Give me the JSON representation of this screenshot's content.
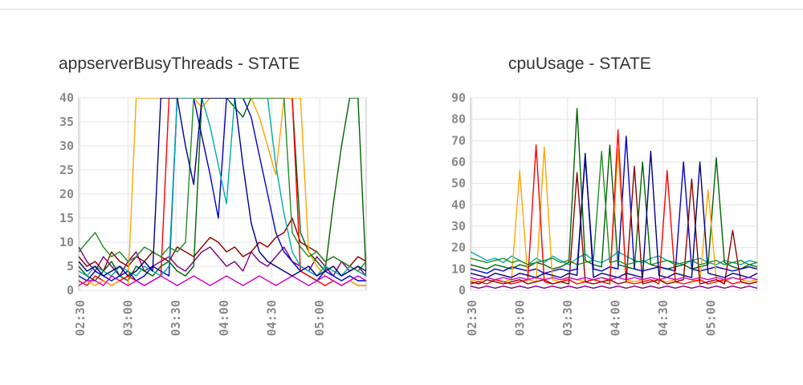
{
  "chart_data": [
    {
      "type": "line",
      "title": "appserverBusyThreads - STATE",
      "xlabel": "",
      "ylabel": "",
      "ylim": [
        0,
        40
      ],
      "yticks": [
        "0",
        "5",
        "10",
        "15",
        "20",
        "25",
        "30",
        "35",
        "40"
      ],
      "xticks": [
        "02:30",
        "03:00",
        "03:30",
        "04:00",
        "04:30",
        "05:00"
      ],
      "grid": true,
      "legend": "none",
      "series_colors": [
        "#800080",
        "#006400",
        "#0000cc",
        "#8b0000",
        "#ff0000",
        "#ffa500",
        "#00aaaa",
        "#228b22",
        "#cc00cc",
        "#000080"
      ],
      "series": [
        {
          "color": "#800080",
          "values": [
            9,
            6,
            4,
            7,
            5,
            3,
            6,
            8,
            4,
            5,
            6,
            7,
            5,
            4,
            6,
            8,
            9,
            7,
            5,
            6,
            4,
            8,
            6,
            5,
            7,
            9,
            6,
            5,
            4,
            7,
            5,
            3,
            6,
            4,
            5,
            3
          ]
        },
        {
          "color": "#006400",
          "values": [
            5,
            3,
            2,
            4,
            6,
            3,
            2,
            5,
            4,
            3,
            5,
            6,
            4,
            3,
            5,
            40,
            40,
            40,
            40,
            38,
            36,
            40,
            40,
            40,
            40,
            40,
            40,
            12,
            8,
            6,
            4,
            18,
            30,
            40,
            40,
            3
          ]
        },
        {
          "color": "#0000cc",
          "values": [
            3,
            2,
            4,
            3,
            2,
            3,
            4,
            2,
            3,
            5,
            4,
            3,
            40,
            40,
            40,
            32,
            24,
            15,
            40,
            40,
            40,
            36,
            28,
            20,
            12,
            8,
            6,
            4,
            3,
            2,
            4,
            3,
            2,
            3,
            2,
            2
          ]
        },
        {
          "color": "#8b0000",
          "values": [
            7,
            5,
            6,
            4,
            8,
            6,
            5,
            7,
            6,
            8,
            7,
            6,
            9,
            8,
            7,
            9,
            11,
            10,
            8,
            9,
            7,
            8,
            10,
            9,
            11,
            12,
            15,
            10,
            9,
            8,
            6,
            7,
            6,
            5,
            7,
            6
          ]
        },
        {
          "color": "#ff0000",
          "values": [
            2,
            1,
            3,
            2,
            1,
            2,
            3,
            2,
            1,
            2,
            3,
            40,
            40,
            40,
            40,
            40,
            40,
            40,
            40,
            40,
            40,
            40,
            40,
            40,
            40,
            40,
            40,
            4,
            3,
            2,
            1,
            2,
            1,
            2,
            1,
            1
          ]
        },
        {
          "color": "#ffa500",
          "values": [
            1,
            2,
            1,
            2,
            1,
            2,
            1,
            40,
            40,
            40,
            40,
            40,
            40,
            40,
            40,
            38,
            40,
            40,
            40,
            40,
            40,
            40,
            36,
            30,
            24,
            40,
            40,
            40,
            8,
            5,
            3,
            2,
            1,
            2,
            1,
            1
          ]
        },
        {
          "color": "#00aaaa",
          "values": [
            4,
            3,
            5,
            4,
            3,
            5,
            4,
            3,
            5,
            4,
            3,
            5,
            40,
            40,
            40,
            40,
            34,
            26,
            18,
            40,
            40,
            40,
            40,
            40,
            26,
            16,
            8,
            5,
            4,
            3,
            5,
            4,
            3,
            5,
            4,
            3
          ]
        },
        {
          "color": "#228b22",
          "values": [
            8,
            10,
            12,
            9,
            7,
            8,
            6,
            7,
            9,
            8,
            7,
            9,
            8,
            10,
            40,
            40,
            40,
            40,
            40,
            40,
            40,
            40,
            40,
            40,
            40,
            40,
            12,
            9,
            7,
            8,
            6,
            7,
            6,
            5,
            4,
            6
          ]
        },
        {
          "color": "#cc00cc",
          "values": [
            1,
            2,
            2,
            1,
            3,
            2,
            1,
            2,
            1,
            2,
            3,
            2,
            1,
            2,
            3,
            2,
            1,
            2,
            3,
            2,
            1,
            2,
            3,
            2,
            1,
            2,
            3,
            2,
            1,
            2,
            3,
            2,
            1,
            2,
            3,
            2
          ]
        },
        {
          "color": "#000080",
          "values": [
            6,
            4,
            5,
            3,
            4,
            5,
            3,
            4,
            6,
            4,
            40,
            40,
            40,
            30,
            22,
            40,
            40,
            40,
            40,
            40,
            26,
            14,
            8,
            6,
            5,
            4,
            3,
            4,
            5,
            3,
            4,
            5,
            3,
            4,
            5,
            4
          ]
        }
      ]
    },
    {
      "type": "line",
      "title": "cpuUsage - STATE",
      "xlabel": "",
      "ylabel": "",
      "ylim": [
        0,
        90
      ],
      "yticks": [
        "0",
        "10",
        "20",
        "30",
        "40",
        "50",
        "60",
        "70",
        "80",
        "90"
      ],
      "xticks": [
        "02:30",
        "03:00",
        "03:30",
        "04:00",
        "04:30",
        "05:00"
      ],
      "grid": true,
      "legend": "none",
      "series_colors": [
        "#800080",
        "#006400",
        "#0000cc",
        "#8b0000",
        "#ff0000",
        "#ffa500",
        "#00aaaa",
        "#228b22",
        "#cc00cc",
        "#000080"
      ],
      "series": [
        {
          "color": "#00aaaa",
          "values": [
            18,
            16,
            14,
            15,
            13,
            16,
            14,
            12,
            15,
            13,
            16,
            14,
            12,
            15,
            17,
            14,
            13,
            15,
            18,
            16,
            14,
            13,
            15,
            16,
            14,
            13,
            12,
            14,
            15,
            13,
            12,
            14,
            13,
            12,
            14,
            13
          ]
        },
        {
          "color": "#006400",
          "values": [
            12,
            11,
            10,
            12,
            11,
            10,
            12,
            11,
            13,
            12,
            10,
            11,
            13,
            85,
            14,
            12,
            11,
            68,
            12,
            11,
            10,
            60,
            12,
            11,
            10,
            11,
            12,
            10,
            11,
            12,
            62,
            13,
            11,
            10,
            12,
            11
          ]
        },
        {
          "color": "#0000cc",
          "values": [
            10,
            9,
            8,
            10,
            9,
            11,
            10,
            9,
            10,
            8,
            9,
            10,
            9,
            10,
            62,
            10,
            9,
            11,
            10,
            72,
            10,
            9,
            10,
            11,
            10,
            9,
            60,
            10,
            9,
            10,
            11,
            10,
            9,
            10,
            11,
            10
          ]
        },
        {
          "color": "#ffa500",
          "values": [
            5,
            4,
            6,
            5,
            4,
            5,
            56,
            5,
            4,
            67,
            5,
            4,
            6,
            5,
            4,
            5,
            6,
            4,
            66,
            5,
            4,
            5,
            6,
            5,
            4,
            5,
            6,
            5,
            4,
            47,
            5,
            4,
            6,
            5,
            4,
            5
          ]
        },
        {
          "color": "#ff0000",
          "values": [
            3,
            4,
            3,
            5,
            4,
            3,
            4,
            5,
            68,
            4,
            3,
            4,
            5,
            3,
            4,
            5,
            4,
            3,
            75,
            4,
            3,
            4,
            5,
            3,
            56,
            4,
            3,
            4,
            5,
            3,
            4,
            5,
            3,
            4,
            3,
            4
          ]
        },
        {
          "color": "#8b0000",
          "values": [
            4,
            3,
            5,
            4,
            3,
            4,
            5,
            3,
            4,
            5,
            3,
            4,
            3,
            55,
            4,
            3,
            4,
            5,
            3,
            4,
            58,
            3,
            4,
            5,
            3,
            4,
            5,
            52,
            3,
            4,
            5,
            3,
            28,
            4,
            3,
            4
          ]
        },
        {
          "color": "#228b22",
          "values": [
            15,
            14,
            13,
            14,
            15,
            13,
            14,
            12,
            13,
            14,
            15,
            13,
            14,
            12,
            13,
            14,
            65,
            13,
            14,
            12,
            13,
            14,
            12,
            13,
            14,
            12,
            13,
            14,
            12,
            13,
            14,
            12,
            13,
            14,
            12,
            13
          ]
        },
        {
          "color": "#000080",
          "values": [
            8,
            7,
            6,
            8,
            7,
            6,
            8,
            7,
            6,
            8,
            7,
            6,
            8,
            7,
            64,
            6,
            8,
            7,
            6,
            8,
            7,
            6,
            65,
            7,
            6,
            8,
            7,
            6,
            60,
            8,
            7,
            6,
            8,
            7,
            6,
            8
          ]
        },
        {
          "color": "#800080",
          "values": [
            2,
            1,
            2,
            1,
            2,
            1,
            2,
            1,
            2,
            1,
            2,
            1,
            2,
            1,
            2,
            1,
            2,
            1,
            2,
            1,
            2,
            1,
            2,
            1,
            2,
            1,
            2,
            1,
            2,
            1,
            2,
            1,
            2,
            1,
            2,
            1
          ]
        },
        {
          "color": "#cc00cc",
          "values": [
            6,
            5,
            6,
            5,
            6,
            5,
            6,
            5,
            6,
            5,
            6,
            5,
            6,
            5,
            6,
            5,
            6,
            5,
            6,
            5,
            6,
            5,
            6,
            5,
            6,
            5,
            6,
            5,
            6,
            5,
            6,
            5,
            6,
            5,
            6,
            5
          ]
        }
      ]
    }
  ]
}
